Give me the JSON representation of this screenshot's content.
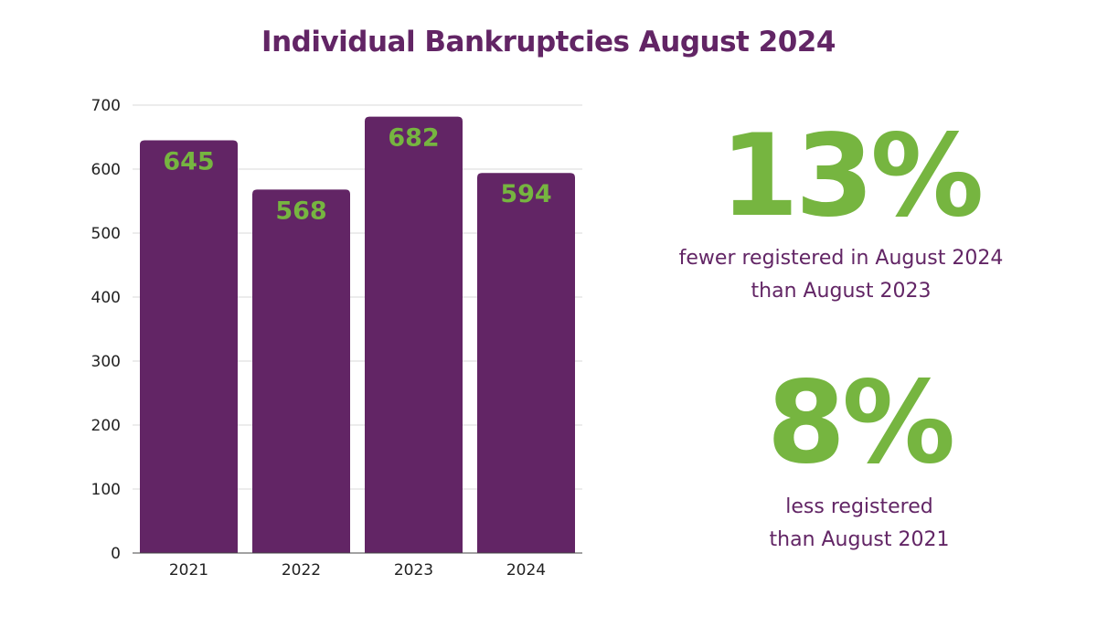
{
  "title": "Individual Bankruptcies August 2024",
  "colors": {
    "bar": "#622565",
    "accent": "#76b540",
    "text": "#622565",
    "grid": "#d9d9d9"
  },
  "chart_data": {
    "type": "bar",
    "title": "Individual Bankruptcies August 2024",
    "categories": [
      "2021",
      "2022",
      "2023",
      "2024"
    ],
    "values": [
      645,
      568,
      682,
      594
    ],
    "data_labels": [
      "645",
      "568",
      "682",
      "594"
    ],
    "xlabel": "",
    "ylabel": "",
    "ylim": [
      0,
      700
    ],
    "yticks": [
      0,
      100,
      200,
      300,
      400,
      500,
      600,
      700
    ],
    "grid": true,
    "legend": "none"
  },
  "stats": [
    {
      "value": "13%",
      "lines": [
        "fewer registered in August 2024",
        "than August 2023"
      ]
    },
    {
      "value": "8%",
      "lines": [
        "less registered",
        "than August 2021"
      ]
    }
  ]
}
